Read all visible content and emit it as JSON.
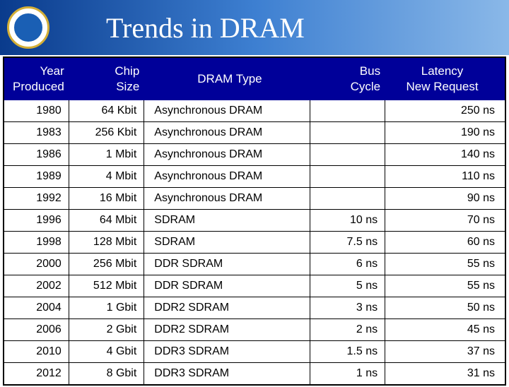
{
  "slide": {
    "title": "Trends in DRAM"
  },
  "table": {
    "type": "table",
    "header_background": "#000099",
    "header_text_color": "#ffffff",
    "border_color": "#000000",
    "columns": [
      {
        "label": "Year\nProduced",
        "align": "right",
        "width_pct": 13
      },
      {
        "label": "Chip\nSize",
        "align": "right",
        "width_pct": 15
      },
      {
        "label": "DRAM Type",
        "align": "left",
        "width_pct": 33
      },
      {
        "label": "Bus\nCycle",
        "align": "right",
        "width_pct": 15
      },
      {
        "label": "Latency\nNew Request",
        "align": "right",
        "width_pct": 24
      }
    ],
    "rows": [
      [
        "1980",
        "64 Kbit",
        "Asynchronous DRAM",
        "",
        "250 ns"
      ],
      [
        "1983",
        "256 Kbit",
        "Asynchronous DRAM",
        "",
        "190 ns"
      ],
      [
        "1986",
        "1 Mbit",
        "Asynchronous DRAM",
        "",
        "140 ns"
      ],
      [
        "1989",
        "4 Mbit",
        "Asynchronous DRAM",
        "",
        "110 ns"
      ],
      [
        "1992",
        "16 Mbit",
        "Asynchronous DRAM",
        "",
        "90 ns"
      ],
      [
        "1996",
        "64 Mbit",
        "SDRAM",
        "10 ns",
        "70 ns"
      ],
      [
        "1998",
        "128 Mbit",
        "SDRAM",
        "7.5 ns",
        "60 ns"
      ],
      [
        "2000",
        "256 Mbit",
        "DDR SDRAM",
        "6 ns",
        "55 ns"
      ],
      [
        "2002",
        "512 Mbit",
        "DDR SDRAM",
        "5 ns",
        "55 ns"
      ],
      [
        "2004",
        "1 Gbit",
        "DDR2 SDRAM",
        "3 ns",
        "50 ns"
      ],
      [
        "2006",
        "2 Gbit",
        "DDR2 SDRAM",
        "2 ns",
        "45 ns"
      ],
      [
        "2010",
        "4 Gbit",
        "DDR3 SDRAM",
        "1.5 ns",
        "37 ns"
      ],
      [
        "2012",
        "8 Gbit",
        "DDR3 SDRAM",
        "1 ns",
        "31 ns"
      ]
    ]
  }
}
